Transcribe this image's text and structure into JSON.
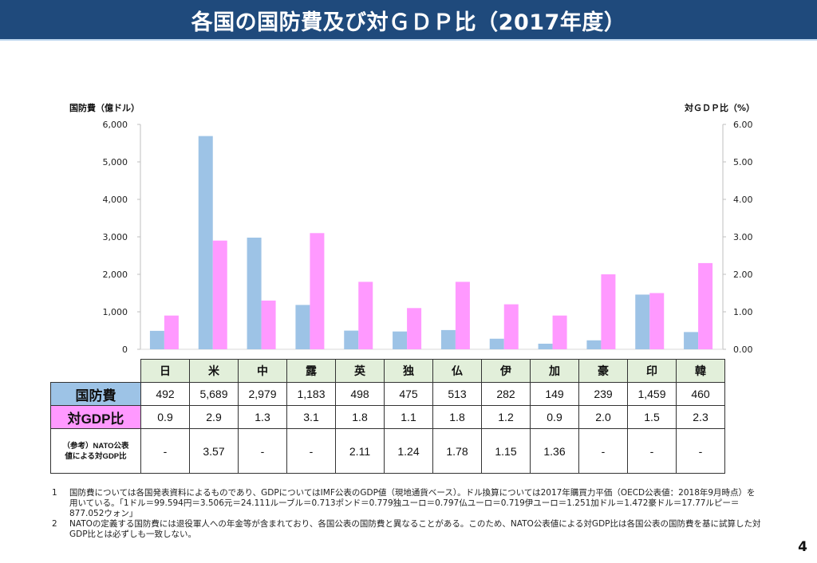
{
  "title": "各国の国防費及び対ＧＤＰ比（2017年度）",
  "page_number": "4",
  "colors": {
    "title_bar": "#1f4a7c",
    "defense_spending": "#9dc3e6",
    "gdp_ratio": "#ff99ff",
    "table_header": "#e2efda"
  },
  "chart_data": {
    "type": "bar",
    "title": "各国の国防費及び対ＧＤＰ比（2017年度）",
    "categories": [
      "日",
      "米",
      "中",
      "露",
      "英",
      "独",
      "仏",
      "伊",
      "加",
      "豪",
      "印",
      "韓"
    ],
    "series": [
      {
        "name": "国防費",
        "axis": "left",
        "values": [
          492,
          5689,
          2979,
          1183,
          498,
          475,
          513,
          282,
          149,
          239,
          1459,
          460
        ]
      },
      {
        "name": "対GDP比",
        "axis": "right",
        "values": [
          0.9,
          2.9,
          1.3,
          3.1,
          1.8,
          1.1,
          1.8,
          1.2,
          0.9,
          2.0,
          1.5,
          2.3
        ]
      }
    ],
    "ylabel": "国防費（億ドル）",
    "ylabel_right": "対ＧＤＰ比（%）",
    "ylim": [
      0,
      6000
    ],
    "ylim_right": [
      0,
      6
    ],
    "yticks": [
      "0",
      "1,000",
      "2,000",
      "3,000",
      "4,000",
      "5,000",
      "6,000"
    ],
    "yticks_right": [
      "0.00",
      "1.00",
      "2.00",
      "3.00",
      "4.00",
      "5.00",
      "6.00"
    ],
    "grid": false,
    "legend": "table-below"
  },
  "table": {
    "categories": [
      "日",
      "米",
      "中",
      "露",
      "英",
      "独",
      "仏",
      "伊",
      "加",
      "豪",
      "印",
      "韓"
    ],
    "rows": [
      {
        "label": "国防費",
        "values": [
          "492",
          "5,689",
          "2,979",
          "1,183",
          "498",
          "475",
          "513",
          "282",
          "149",
          "239",
          "1,459",
          "460"
        ]
      },
      {
        "label": "対GDP比",
        "values": [
          "0.9",
          "2.9",
          "1.3",
          "3.1",
          "1.8",
          "1.1",
          "1.8",
          "1.2",
          "0.9",
          "2.0",
          "1.5",
          "2.3"
        ]
      },
      {
        "label_line1": "（参考）NATO公表",
        "label_line2": "値による対GDP比",
        "values": [
          "-",
          "3.57",
          "-",
          "-",
          "2.11",
          "1.24",
          "1.78",
          "1.15",
          "1.36",
          "-",
          "-",
          "-"
        ]
      }
    ]
  },
  "notes": [
    {
      "num": "1",
      "text": "国防費については各国発表資料によるものであり、GDPについてはIMF公表のGDP値（現地通貨ベース）。ドル換算については2017年購買力平価（OECD公表値：2018年9月時点）を用いている。「1ドル＝99.594円＝3.506元＝24.111ルーブル＝0.713ポンド＝0.779独ユーロ＝0.797仏ユーロ＝0.719伊ユーロ＝1.251加ドル＝1.472豪ドル＝17.77ルピー＝877.052ウォン」"
    },
    {
      "num": "2",
      "text": "NATOの定義する国防費には退役軍人への年金等が含まれており、各国公表の国防費と異なることがある。このため、NATO公表値による対GDP比は各国公表の国防費を基に試算した対GDP比とは必ずしも一致しない。"
    }
  ]
}
